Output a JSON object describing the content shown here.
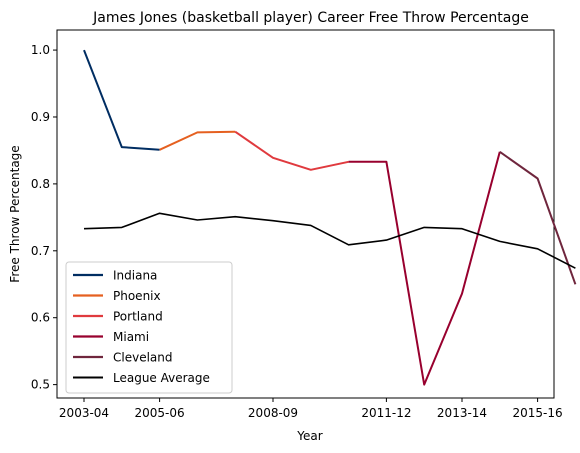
{
  "chart_data": {
    "type": "line",
    "title": "James Jones (basketball player) Career Free Throw Percentage",
    "xlabel": "Year",
    "ylabel": "Free Throw Percentage",
    "x": [
      "2003-04",
      "2004-05",
      "2005-06",
      "2006-07",
      "2007-08",
      "2008-09",
      "2009-10",
      "2010-11",
      "2011-12",
      "2012-13",
      "2013-14",
      "2014-15",
      "2015-16",
      "2016-17"
    ],
    "x_tick_labels": [
      "2003-04",
      "2005-06",
      "2008-09",
      "2011-12",
      "2013-14",
      "2015-16"
    ],
    "y_ticks": [
      "0.5",
      "0.6",
      "0.7",
      "0.8",
      "0.9",
      "1.0"
    ],
    "ylim": [
      0.48,
      1.03
    ],
    "grid": false,
    "legend_position": "lower-left",
    "series": [
      {
        "name": "Indiana",
        "color": "#002D62",
        "points": [
          {
            "x": "2003-04",
            "y": 1.0
          },
          {
            "x": "2004-05",
            "y": 0.855
          },
          {
            "x": "2005-06",
            "y": 0.851
          }
        ]
      },
      {
        "name": "Phoenix",
        "color": "#E56020",
        "points": [
          {
            "x": "2005-06",
            "y": 0.851
          },
          {
            "x": "2006-07",
            "y": 0.877
          },
          {
            "x": "2007-08",
            "y": 0.878
          }
        ]
      },
      {
        "name": "Portland",
        "color": "#E03A3E",
        "points": [
          {
            "x": "2007-08",
            "y": 0.878
          },
          {
            "x": "2008-09",
            "y": 0.839
          },
          {
            "x": "2009-10",
            "y": 0.821
          },
          {
            "x": "2010-11",
            "y": 0.833
          }
        ]
      },
      {
        "name": "Miami",
        "color": "#98002E",
        "points": [
          {
            "x": "2010-11",
            "y": 0.833
          },
          {
            "x": "2011-12",
            "y": 0.833
          },
          {
            "x": "2012-13",
            "y": 0.5
          },
          {
            "x": "2013-14",
            "y": 0.636
          },
          {
            "x": "2014-15",
            "y": 0.848
          }
        ]
      },
      {
        "name": "Cleveland",
        "color": "#6F263D",
        "points": [
          {
            "x": "2014-15",
            "y": 0.848
          },
          {
            "x": "2015-16",
            "y": 0.808
          },
          {
            "x": "2016-17",
            "y": 0.65
          }
        ]
      },
      {
        "name": "League Average",
        "color": "#000000",
        "points": [
          {
            "x": "2003-04",
            "y": 0.733
          },
          {
            "x": "2004-05",
            "y": 0.735
          },
          {
            "x": "2005-06",
            "y": 0.756
          },
          {
            "x": "2006-07",
            "y": 0.746
          },
          {
            "x": "2007-08",
            "y": 0.751
          },
          {
            "x": "2008-09",
            "y": 0.745
          },
          {
            "x": "2009-10",
            "y": 0.738
          },
          {
            "x": "2010-11",
            "y": 0.709
          },
          {
            "x": "2011-12",
            "y": 0.716
          },
          {
            "x": "2012-13",
            "y": 0.735
          },
          {
            "x": "2013-14",
            "y": 0.733
          },
          {
            "x": "2014-15",
            "y": 0.714
          },
          {
            "x": "2015-16",
            "y": 0.703
          },
          {
            "x": "2016-17",
            "y": 0.674
          }
        ]
      }
    ]
  }
}
